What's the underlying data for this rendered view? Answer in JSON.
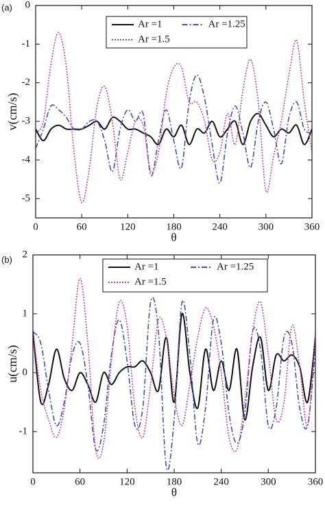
{
  "chart_data": [
    {
      "type": "line",
      "panel_label": "(a)",
      "ylabel": "v(cm/s)",
      "xlabel": "θ",
      "x": [
        0,
        10,
        20,
        30,
        40,
        50,
        60,
        70,
        80,
        90,
        100,
        110,
        120,
        130,
        140,
        150,
        160,
        170,
        180,
        190,
        200,
        210,
        220,
        230,
        240,
        250,
        260,
        270,
        280,
        290,
        300,
        310,
        320,
        330,
        340,
        350,
        360
      ],
      "xlim": [
        0,
        360
      ],
      "xticks": [
        0,
        60,
        120,
        180,
        240,
        300,
        360
      ],
      "ylim": [
        -5.5,
        0
      ],
      "yticks": [
        0,
        -1,
        -2,
        -3,
        -4,
        -5
      ],
      "series": [
        {
          "name": "Ar =1",
          "color": "#111111",
          "style": "solid",
          "values": [
            -3.2,
            -3.5,
            -3.2,
            -3.1,
            -3.2,
            -3.2,
            -3.2,
            -3.1,
            -3.0,
            -3.2,
            -2.9,
            -3.0,
            -3.2,
            -3.2,
            -3.3,
            -3.4,
            -3.6,
            -3.2,
            -3.4,
            -3.1,
            -3.6,
            -3.2,
            -3.3,
            -3.0,
            -3.4,
            -3.2,
            -3.0,
            -3.6,
            -3.0,
            -2.8,
            -3.1,
            -3.4,
            -3.2,
            -3.3,
            -3.1,
            -3.6,
            -3.2
          ]
        },
        {
          "name": "Ar =1.25",
          "color": "#3a55a8",
          "style": "dashdot",
          "values": [
            -3.7,
            -3.2,
            -2.6,
            -2.7,
            -2.9,
            -3.2,
            -3.2,
            -3.0,
            -3.0,
            -3.5,
            -4.3,
            -3.2,
            -2.7,
            -3.0,
            -2.8,
            -4.4,
            -3.5,
            -2.7,
            -3.5,
            -4.2,
            -2.5,
            -1.8,
            -2.4,
            -3.6,
            -4.6,
            -3.3,
            -2.6,
            -3.3,
            -4.2,
            -3.0,
            -2.5,
            -3.2,
            -4.1,
            -2.9,
            -2.5,
            -3.2,
            -3.3
          ]
        },
        {
          "name": "Ar =1.5",
          "color": "#c0429e",
          "style": "dotted",
          "values": [
            -3.3,
            -3.0,
            -1.5,
            -0.7,
            -1.6,
            -3.8,
            -5.1,
            -4.2,
            -2.6,
            -2.1,
            -3.0,
            -4.5,
            -3.8,
            -3.0,
            -3.1,
            -4.3,
            -3.8,
            -2.3,
            -1.6,
            -1.6,
            -2.5,
            -2.5,
            -3.0,
            -4.0,
            -3.8,
            -2.8,
            -3.6,
            -2.2,
            -1.4,
            -2.5,
            -4.8,
            -3.9,
            -3.0,
            -1.8,
            -0.9,
            -2.5,
            -3.8
          ]
        }
      ]
    },
    {
      "type": "line",
      "panel_label": "(b)",
      "ylabel": "u(cm/s)",
      "xlabel": "θ",
      "x": [
        0,
        10,
        20,
        30,
        40,
        50,
        60,
        70,
        80,
        90,
        100,
        110,
        120,
        130,
        140,
        150,
        160,
        170,
        180,
        190,
        200,
        210,
        220,
        230,
        240,
        250,
        260,
        270,
        280,
        290,
        300,
        310,
        320,
        330,
        340,
        350,
        360
      ],
      "xlim": [
        0,
        360
      ],
      "xticks": [
        0,
        60,
        120,
        180,
        240,
        300,
        360
      ],
      "ylim": [
        -1.7,
        2
      ],
      "yticks": [
        -1,
        0,
        1,
        2
      ],
      "series": [
        {
          "name": "Ar =1",
          "color": "#111111",
          "style": "solid",
          "values": [
            0.7,
            -0.5,
            -0.2,
            0.4,
            -0.1,
            -0.3,
            0.0,
            -0.2,
            -0.5,
            0.0,
            -0.2,
            0.0,
            0.1,
            0.1,
            0.2,
            0.0,
            -0.3,
            0.6,
            -0.5,
            1.0,
            0.0,
            -0.6,
            0.4,
            -0.3,
            0.2,
            -0.3,
            0.4,
            -0.8,
            0.1,
            0.6,
            -0.3,
            0.3,
            0.2,
            0.3,
            0.1,
            -0.5,
            0.6
          ]
        },
        {
          "name": "Ar =1.25",
          "color": "#3a55a8",
          "style": "dashdot",
          "values": [
            0.7,
            0.5,
            -0.3,
            -0.9,
            -0.5,
            0.3,
            0.5,
            -0.2,
            -1.3,
            -0.9,
            0.3,
            0.9,
            0.2,
            -0.9,
            -0.6,
            1.2,
            0.7,
            -1.6,
            -0.8,
            1.2,
            0.3,
            -1.2,
            -0.6,
            0.9,
            0.5,
            -0.7,
            -1.2,
            -0.7,
            0.7,
            0.4,
            -0.9,
            -0.6,
            0.6,
            0.5,
            -0.6,
            -0.9,
            0.4
          ]
        },
        {
          "name": "Ar =1.5",
          "color": "#c0429e",
          "style": "dotted",
          "values": [
            0.7,
            -0.3,
            -0.8,
            -1.1,
            -0.6,
            0.5,
            1.6,
            0.5,
            -1.3,
            -1.2,
            0.2,
            1.2,
            0.8,
            -0.6,
            -1.1,
            -0.2,
            0.9,
            0.6,
            -0.4,
            -0.9,
            -0.2,
            0.6,
            1.1,
            0.8,
            0.0,
            -1.1,
            -1.3,
            -0.5,
            0.7,
            1.2,
            0.3,
            -0.8,
            -0.5,
            0.8,
            0.1,
            -0.9,
            0.7
          ]
        }
      ]
    }
  ]
}
